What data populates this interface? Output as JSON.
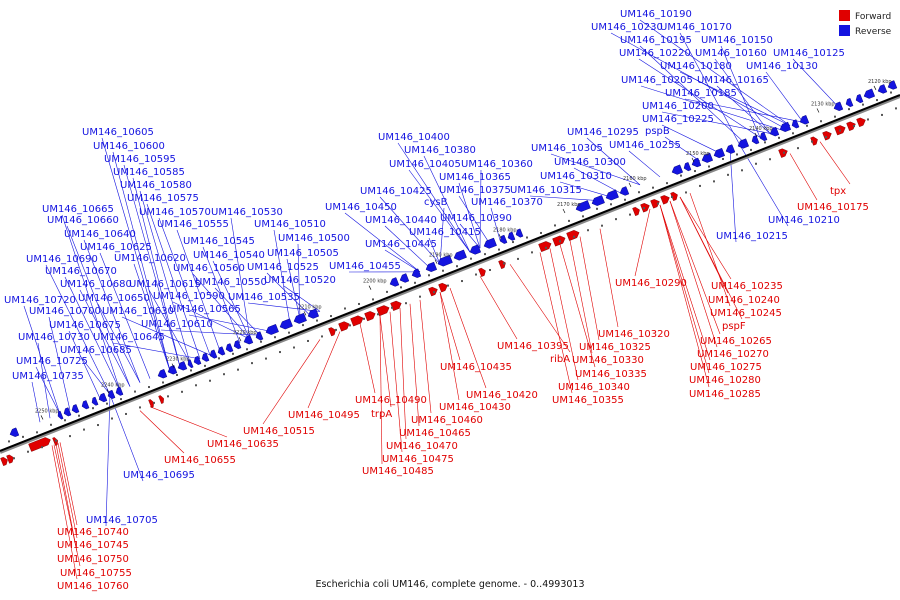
{
  "colors": {
    "forward": "#e00000",
    "reverse": "#1414e0",
    "backbone": "#000000",
    "leader": "#1414e0",
    "leader_fwd": "#e00000"
  },
  "caption": "Escherichia coli UM146, complete genome. - 0..4993013",
  "legend": [
    {
      "label": "Forward",
      "color": "#e00000"
    },
    {
      "label": "Reverse",
      "color": "#1414e0"
    }
  ],
  "kbp_ticks": [
    "2120 kbp",
    "2130 kbp",
    "2140 kbp",
    "2150 kbp",
    "2160 kbp",
    "2170 kbp",
    "2180 kbp",
    "2190 kbp",
    "2200 kbp",
    "2210 kbp",
    "2220 kbp",
    "2230 kbp",
    "2240 kbp",
    "2250 kbp"
  ],
  "reverse_labels": [
    "UM146_10190",
    "UM146_10230",
    "UM146_10170",
    "UM146_10195",
    "UM146_10150",
    "UM146_10220",
    "UM146_10160",
    "UM146_10125",
    "UM146_10180",
    "UM146_10130",
    "UM146_10205",
    "UM146_10165",
    "UM146_10185",
    "UM146_10200",
    "pspB",
    "UM146_10225",
    "UM146_10295",
    "UM146_10305",
    "UM146_10255",
    "UM146_10300",
    "UM146_10310",
    "UM146_10315",
    "UM146_10210",
    "UM146_10215",
    "UM146_10400",
    "UM146_10380",
    "UM146_10405",
    "UM146_10360",
    "UM146_10365",
    "UM146_10425",
    "UM146_10375",
    "cysB",
    "UM146_10370",
    "UM146_10450",
    "UM146_10440",
    "UM146_10390",
    "UM146_10415",
    "UM146_10445",
    "UM146_10455",
    "UM146_10605",
    "UM146_10600",
    "UM146_10595",
    "UM146_10585",
    "UM146_10580",
    "UM146_10575",
    "UM146_10665",
    "UM146_10570",
    "UM146_10530",
    "UM146_10660",
    "UM146_10555",
    "UM146_10510",
    "UM146_10640",
    "UM146_10545",
    "UM146_10500",
    "UM146_10625",
    "UM146_10540",
    "UM146_10505",
    "UM146_10690",
    "UM146_10620",
    "UM146_10560",
    "UM146_10525",
    "UM146_10670",
    "UM146_10550",
    "UM146_10520",
    "UM146_10680",
    "UM146_10615",
    "UM146_10720",
    "UM146_10650",
    "UM146_10590",
    "UM146_10535",
    "UM146_10700",
    "UM146_10630",
    "UM146_10565",
    "UM146_10675",
    "UM146_10610",
    "UM146_10730",
    "UM146_10645",
    "UM146_10685",
    "UM146_10725",
    "UM146_10735",
    "UM146_10695",
    "UM146_10705"
  ],
  "forward_labels": [
    "tpx",
    "UM146_10175",
    "UM146_10290",
    "UM146_10235",
    "UM146_10240",
    "UM146_10245",
    "pspF",
    "UM146_10265",
    "UM146_10270",
    "UM146_10275",
    "UM146_10280",
    "UM146_10285",
    "UM146_10320",
    "UM146_10325",
    "UM146_10330",
    "UM146_10335",
    "UM146_10340",
    "UM146_10355",
    "UM146_10395",
    "ribA",
    "UM146_10435",
    "UM146_10420",
    "UM146_10430",
    "UM146_10490",
    "UM146_10495",
    "trpA",
    "UM146_10460",
    "UM146_10515",
    "UM146_10465",
    "UM146_10470",
    "UM146_10475",
    "UM146_10485",
    "UM146_10635",
    "UM146_10655",
    "UM146_10740",
    "UM146_10745",
    "UM146_10750",
    "UM146_10755",
    "UM146_10760"
  ]
}
